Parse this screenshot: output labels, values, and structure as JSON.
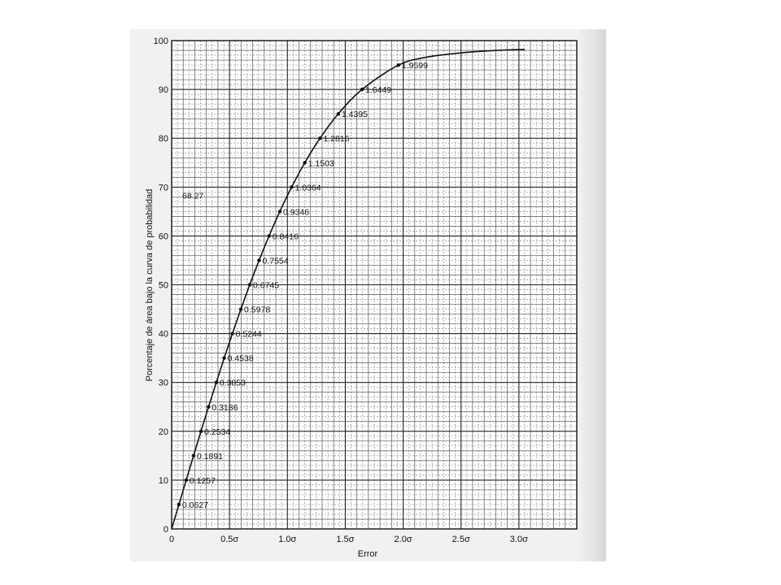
{
  "chart_data": {
    "type": "line",
    "xlabel": "Error",
    "ylabel": "Porcentaje de área bajo la curva de probabilidad",
    "xlim": [
      0,
      3.5
    ],
    "ylim": [
      0,
      100
    ],
    "x_ticks": [
      {
        "value": 0,
        "label": "0"
      },
      {
        "value": 0.5,
        "label": "0.5σ"
      },
      {
        "value": 1.0,
        "label": "1.0σ"
      },
      {
        "value": 1.5,
        "label": "1.5σ"
      },
      {
        "value": 2.0,
        "label": "2.0σ"
      },
      {
        "value": 2.5,
        "label": "2.5σ"
      },
      {
        "value": 3.0,
        "label": "3.0σ"
      }
    ],
    "y_ticks": [
      {
        "value": 0,
        "label": "0"
      },
      {
        "value": 10,
        "label": "10"
      },
      {
        "value": 20,
        "label": "20"
      },
      {
        "value": 30,
        "label": "30"
      },
      {
        "value": 40,
        "label": "40"
      },
      {
        "value": 50,
        "label": "50"
      },
      {
        "value": 60,
        "label": "60"
      },
      {
        "value": 70,
        "label": "70"
      },
      {
        "value": 80,
        "label": "80"
      },
      {
        "value": 90,
        "label": "90"
      },
      {
        "value": 100,
        "label": "100"
      }
    ],
    "grid": true,
    "series": [
      {
        "points": [
          {
            "x": 0.0627,
            "y": 5,
            "label": "0.0627"
          },
          {
            "x": 0.1257,
            "y": 10,
            "label": "0.1257"
          },
          {
            "x": 0.1891,
            "y": 15,
            "label": "0.1891"
          },
          {
            "x": 0.2534,
            "y": 20,
            "label": "0.2534"
          },
          {
            "x": 0.3186,
            "y": 25,
            "label": "0.3186"
          },
          {
            "x": 0.3853,
            "y": 30,
            "label": "0.3853"
          },
          {
            "x": 0.4538,
            "y": 35,
            "label": "0.4538"
          },
          {
            "x": 0.5244,
            "y": 40,
            "label": "0.5244"
          },
          {
            "x": 0.5978,
            "y": 45,
            "label": "0.5978"
          },
          {
            "x": 0.6745,
            "y": 50,
            "label": "0.6745"
          },
          {
            "x": 0.7554,
            "y": 55,
            "label": "0.7554"
          },
          {
            "x": 0.8416,
            "y": 60,
            "label": "0.8416"
          },
          {
            "x": 0.9346,
            "y": 65,
            "label": "0.9346"
          },
          {
            "x": 1.0364,
            "y": 70,
            "label": "1.0364"
          },
          {
            "x": 1.1503,
            "y": 75,
            "label": "1.1503"
          },
          {
            "x": 1.2816,
            "y": 80,
            "label": "1.2816"
          },
          {
            "x": 1.4395,
            "y": 85,
            "label": "1.4395"
          },
          {
            "x": 1.6449,
            "y": 90,
            "label": "1.6449"
          },
          {
            "x": 1.9599,
            "y": 95,
            "label": "1.9599"
          }
        ],
        "curve_end": {
          "x": 3.05,
          "y": 98.2
        }
      }
    ],
    "annotations": [
      {
        "text": "68.27",
        "x": 1.0,
        "y": 68.27
      }
    ]
  }
}
